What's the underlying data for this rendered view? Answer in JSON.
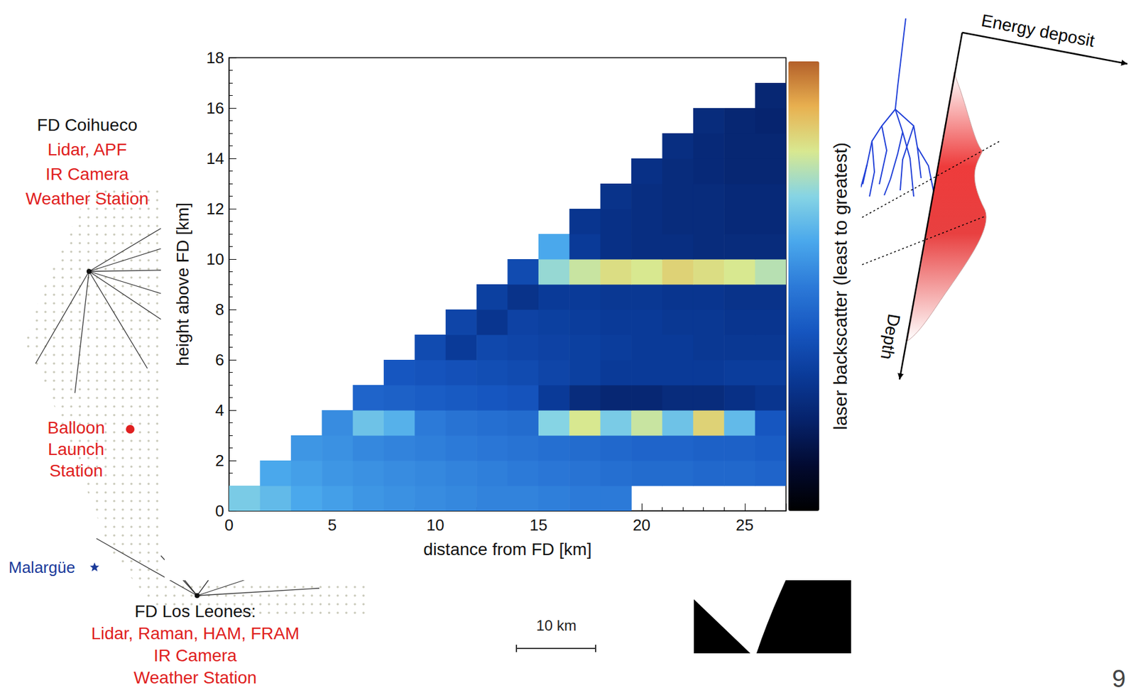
{
  "chart_data": {
    "type": "heatmap",
    "x_label": "distance from FD [km]",
    "y_label": "height above FD [km]",
    "xlim": [
      0,
      27
    ],
    "xticks": [
      0,
      5,
      10,
      15,
      20,
      25
    ],
    "ylim": [
      0,
      18
    ],
    "yticks": [
      0,
      2,
      4,
      6,
      8,
      10,
      12,
      14,
      16,
      18
    ],
    "grid": false,
    "x_edges": [
      0,
      1.5,
      3,
      4.5,
      6,
      7.5,
      9,
      10.5,
      12,
      13.5,
      15,
      16.5,
      18,
      19.5,
      21,
      22.5,
      24,
      25.5,
      27
    ],
    "y_edges": [
      0,
      1,
      2,
      3,
      4,
      5,
      6,
      7,
      8,
      9,
      10,
      11,
      12,
      13,
      14,
      15,
      16,
      17,
      18
    ],
    "cells": [
      [
        68,
        64,
        60,
        58,
        56,
        55,
        54,
        53,
        52,
        52,
        51,
        50,
        50,
        null,
        null,
        null,
        null,
        null
      ],
      [
        null,
        60,
        58,
        56,
        55,
        54,
        53,
        52,
        51,
        50,
        49,
        48,
        47,
        46,
        46,
        45,
        45,
        44
      ],
      [
        null,
        null,
        56,
        55,
        53,
        52,
        51,
        50,
        49,
        48,
        47,
        46,
        45,
        44,
        44,
        43,
        43,
        42
      ],
      [
        null,
        null,
        null,
        54,
        66,
        62,
        50,
        48,
        47,
        46,
        70,
        80,
        68,
        78,
        66,
        84,
        64,
        40
      ],
      [
        null,
        null,
        null,
        null,
        44,
        43,
        42,
        41,
        40,
        39,
        30,
        24,
        22,
        22,
        24,
        24,
        26,
        28
      ],
      [
        null,
        null,
        null,
        null,
        null,
        40,
        39,
        38,
        37,
        36,
        34,
        32,
        30,
        30,
        30,
        30,
        31,
        31
      ],
      [
        null,
        null,
        null,
        null,
        null,
        null,
        36,
        30,
        35,
        34,
        33,
        32,
        31,
        30,
        30,
        29,
        29,
        29
      ],
      [
        null,
        null,
        null,
        null,
        null,
        null,
        null,
        34,
        28,
        33,
        32,
        31,
        30,
        30,
        29,
        29,
        28,
        28
      ],
      [
        null,
        null,
        null,
        null,
        null,
        null,
        null,
        null,
        32,
        27,
        30,
        30,
        29,
        29,
        28,
        28,
        27,
        27
      ],
      [
        null,
        null,
        null,
        null,
        null,
        null,
        null,
        null,
        null,
        36,
        72,
        78,
        82,
        80,
        84,
        82,
        80,
        76
      ],
      [
        null,
        null,
        null,
        null,
        null,
        null,
        null,
        null,
        null,
        null,
        60,
        30,
        26,
        25,
        25,
        24,
        24,
        24
      ],
      [
        null,
        null,
        null,
        null,
        null,
        null,
        null,
        null,
        null,
        null,
        null,
        28,
        26,
        25,
        24,
        24,
        23,
        23
      ],
      [
        null,
        null,
        null,
        null,
        null,
        null,
        null,
        null,
        null,
        null,
        null,
        null,
        27,
        25,
        24,
        24,
        23,
        23
      ],
      [
        null,
        null,
        null,
        null,
        null,
        null,
        null,
        null,
        null,
        null,
        null,
        null,
        null,
        26,
        24,
        23,
        22,
        22
      ],
      [
        null,
        null,
        null,
        null,
        null,
        null,
        null,
        null,
        null,
        null,
        null,
        null,
        null,
        null,
        25,
        23,
        22,
        22
      ],
      [
        null,
        null,
        null,
        null,
        null,
        null,
        null,
        null,
        null,
        null,
        null,
        null,
        null,
        null,
        null,
        24,
        22,
        21
      ],
      [
        null,
        null,
        null,
        null,
        null,
        null,
        null,
        null,
        null,
        null,
        null,
        null,
        null,
        null,
        null,
        null,
        null,
        22
      ],
      [
        null,
        null,
        null,
        null,
        null,
        null,
        null,
        null,
        null,
        null,
        null,
        null,
        null,
        null,
        null,
        null,
        null,
        null
      ]
    ],
    "colorbar_label": "laser backscatter (least to greatest)",
    "colorbar_range": [
      0,
      100
    ]
  },
  "map": {
    "sites": [
      {
        "name": "FD Coihueco",
        "instruments": [
          "Lidar, APF",
          "IR Camera",
          "Weather Station"
        ]
      },
      {
        "name": "FD Los Leones:",
        "instruments": [
          "Lidar, Raman, HAM, FRAM",
          "IR Camera",
          "Weather Station"
        ]
      }
    ],
    "balloon": [
      "Balloon",
      "Launch",
      "Station"
    ],
    "town": "Malargüe",
    "scale_bar": "10 km"
  },
  "shower_diagram": {
    "x_label": "Energy deposit",
    "y_label": "Depth"
  },
  "page_number": "9"
}
